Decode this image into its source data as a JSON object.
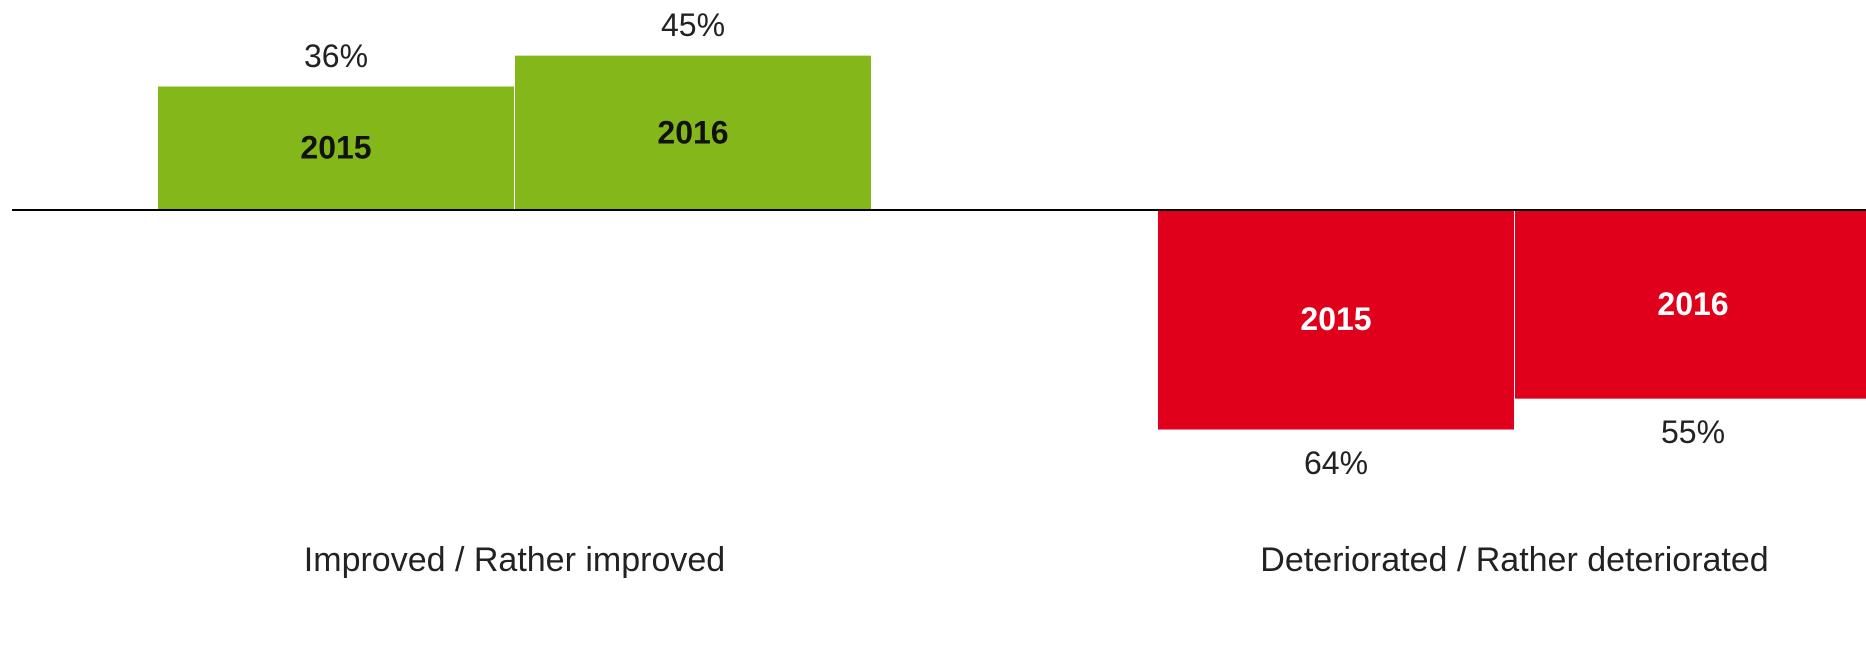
{
  "chart_data": {
    "type": "diverging_bar",
    "categories": [
      "Improved / Rather improved",
      "Deteriorated / Rather deteriorated"
    ],
    "category_colors": [
      "#84b81a",
      "#e0001b"
    ],
    "category_directions": [
      "up",
      "down"
    ],
    "series": [
      {
        "name": "2015",
        "values": [
          36,
          64
        ],
        "value_labels": [
          "36%",
          "64%"
        ]
      },
      {
        "name": "2016",
        "values": [
          45,
          55
        ],
        "value_labels": [
          "45%",
          "55%"
        ]
      }
    ]
  }
}
